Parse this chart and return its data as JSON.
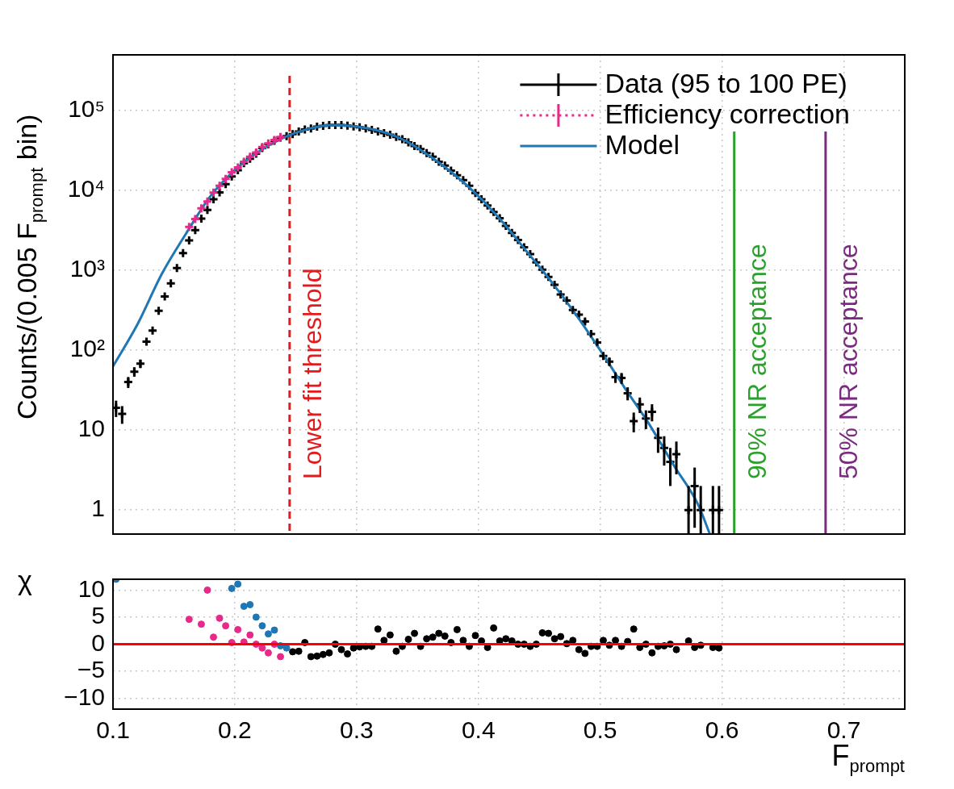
{
  "chart_data": [
    {
      "type": "scatter",
      "ylabel": "Counts/(0.005 F$_{prompt}$ bin)",
      "log": true,
      "grid": true,
      "legend": "top right",
      "tick_labels": "y",
      "xlim": [
        0.1,
        0.75
      ],
      "xticks": [
        0.1,
        0.2,
        0.3,
        0.4,
        0.5,
        0.6,
        0.7
      ],
      "ylim": [
        0.5,
        500000
      ],
      "yticks": [
        1,
        10,
        {
          "value": 100,
          "label": "10²"
        },
        {
          "value": 1000,
          "label": "10³"
        },
        {
          "value": 10000,
          "label": "10⁴"
        },
        {
          "value": 100000,
          "label": "10⁵"
        }
      ],
      "x": [
        0.1025,
        0.1075,
        0.1125,
        0.1175,
        0.1225,
        0.1275,
        0.1325,
        0.1375,
        0.1425,
        0.1475,
        0.1525,
        0.1575,
        0.1625,
        0.1675,
        0.1725,
        0.1775,
        0.1825,
        0.1875,
        0.1925,
        0.1975,
        0.2025,
        0.2075,
        0.2125,
        0.2175,
        0.2225,
        0.2275,
        0.2325,
        0.2375,
        0.2425,
        0.2475,
        0.2525,
        0.2575,
        0.2625,
        0.2675,
        0.2725,
        0.2775,
        0.2825,
        0.2875,
        0.2925,
        0.2975,
        0.3025,
        0.3075,
        0.3125,
        0.3175,
        0.3225,
        0.3275,
        0.3325,
        0.3375,
        0.3425,
        0.3475,
        0.3525,
        0.3575,
        0.3625,
        0.3675,
        0.3725,
        0.3775,
        0.3825,
        0.3875,
        0.3925,
        0.3975,
        0.4025,
        0.4075,
        0.4125,
        0.4175,
        0.4225,
        0.4275,
        0.4325,
        0.4375,
        0.4425,
        0.4475,
        0.4525,
        0.4575,
        0.4625,
        0.4675,
        0.4725,
        0.4775,
        0.4825,
        0.4875,
        0.4925,
        0.4975,
        0.5025,
        0.5075,
        0.5125,
        0.5175,
        0.5225,
        0.5275,
        0.5325,
        0.5375,
        0.5425,
        0.5475,
        0.5525,
        0.5575,
        0.5625,
        0.5675,
        0.5725,
        0.5775,
        0.5825,
        0.5875,
        0.5925,
        0.5975
      ],
      "series": [
        {
          "name": "Data (95 to 100 PE)",
          "color": "#000000",
          "marker": "cross",
          "values": [
            19,
            16,
            40,
            54,
            68,
            128,
            177,
            312,
            472,
            690,
            1070,
            1650,
            2380,
            3200,
            4450,
            5700,
            7800,
            9500,
            12000,
            15000,
            18000,
            22000,
            25000,
            29000,
            34000,
            38000,
            42000,
            46000,
            48000,
            51000,
            55000,
            58000,
            60000,
            63000,
            64500,
            66000,
            66000,
            66000,
            65000,
            63500,
            62000,
            60000,
            57500,
            55000,
            52500,
            50000,
            47000,
            44000,
            40000,
            36000,
            33000,
            29500,
            26500,
            23000,
            20500,
            17800,
            15500,
            13500,
            11500,
            9300,
            7800,
            6500,
            5400,
            4500,
            3600,
            2950,
            2400,
            1950,
            1600,
            1260,
            1020,
            830,
            660,
            500,
            420,
            320,
            280,
            230,
            160,
            125,
            85,
            72,
            46,
            45,
            29,
            13,
            21,
            14,
            17,
            8,
            6,
            4,
            5,
            null,
            1,
            2,
            1,
            null,
            1,
            1
          ],
          "errors": [
            4.4,
            4,
            6.3,
            7.3,
            8.2,
            null,
            null,
            null,
            null,
            null,
            null,
            null,
            null,
            null,
            null,
            null,
            null,
            null,
            null,
            null,
            null,
            null,
            null,
            null,
            null,
            null,
            null,
            null,
            null,
            null,
            null,
            null,
            null,
            null,
            null,
            null,
            null,
            null,
            null,
            null,
            null,
            null,
            null,
            null,
            null,
            null,
            null,
            null,
            null,
            null,
            null,
            null,
            null,
            null,
            null,
            null,
            null,
            null,
            null,
            null,
            null,
            null,
            null,
            null,
            null,
            null,
            null,
            null,
            null,
            null,
            null,
            null,
            26,
            22,
            20,
            18,
            17,
            15,
            13,
            11,
            9,
            8.5,
            7,
            7,
            5.4,
            3.6,
            4.6,
            3.7,
            4.1,
            2.8,
            2.4,
            2,
            2.2,
            null,
            [
              0.5,
              2
            ],
            [
              0.6,
              3.4
            ],
            [
              0.5,
              2
            ],
            null,
            [
              0.5,
              2
            ],
            [
              0.5,
              2
            ]
          ]
        },
        {
          "name": "Efficiency correction",
          "color": "#e7298a",
          "marker": "cross",
          "line_style": "dotted",
          "x": [
            0.1625,
            0.1675,
            0.1725,
            0.1775,
            0.1825,
            0.1875,
            0.1925,
            0.1975,
            0.2025,
            0.2075,
            0.2125,
            0.2175,
            0.2225,
            0.2275,
            0.2325,
            0.2375
          ],
          "values": [
            3500,
            4400,
            6000,
            7300,
            9400,
            11500,
            14000,
            17000,
            19500,
            23000,
            26500,
            30000,
            35000,
            39000,
            43000,
            47000
          ]
        },
        {
          "name": "Model",
          "type": "line",
          "color": "#1f77b4",
          "marker": "none",
          "line_style": "solid",
          "x": [
            0.1,
            0.12,
            0.14,
            0.16,
            0.18,
            0.2,
            0.22,
            0.24,
            0.26,
            0.28,
            0.3,
            0.32,
            0.34,
            0.36,
            0.38,
            0.4,
            0.42,
            0.44,
            0.46,
            0.48,
            0.5,
            0.52,
            0.54,
            0.56,
            0.58,
            0.59
          ],
          "values": [
            63,
            210,
            900,
            2900,
            8500,
            18000,
            31000,
            46000,
            59000,
            66000,
            63000,
            55000,
            42000,
            27000,
            16000,
            8500,
            4000,
            1700,
            720,
            280,
            100,
            34,
            12,
            3.7,
            1.2,
            0.5
          ]
        }
      ],
      "ref_lines": [
        {
          "axis": "x",
          "value": 0.245,
          "label": "Lower fit threshold",
          "color": "#e41a1c",
          "line_style": "dashed"
        },
        {
          "axis": "x",
          "value": 0.61,
          "label": "90% NR acceptance",
          "color": "#2ca02c",
          "line_style": "solid"
        },
        {
          "axis": "x",
          "value": 0.685,
          "label": "50% NR acceptance",
          "color": "#7b2a80",
          "line_style": "solid"
        }
      ]
    },
    {
      "type": "scatter",
      "xlabel": "F$_{prompt}$",
      "ylabel": "χ",
      "grid": true,
      "marker": "circle",
      "xlim": [
        0.1,
        0.75
      ],
      "xticks": [
        0.1,
        0.2,
        0.3,
        0.4,
        0.5,
        0.6,
        0.7
      ],
      "ylim": [
        -12,
        12
      ],
      "yticks": [
        {
          "value": -10,
          "label": "−10"
        },
        {
          "value": -5,
          "label": "−5"
        },
        0,
        5,
        10
      ],
      "series": [
        {
          "color": "#1f77b4",
          "x": [
            0.1025,
            0.1975,
            0.2025,
            0.2075,
            0.2125,
            0.2175,
            0.2225,
            0.2275,
            0.2325,
            0.2375,
            0.2425
          ],
          "values": [
            12,
            10.3,
            11.1,
            7.0,
            7.3,
            5.0,
            3.4,
            1.9,
            2.6,
            -0.3,
            -0.7
          ]
        },
        {
          "color": "#e7298a",
          "x": [
            0.1625,
            0.1725,
            0.1775,
            0.1825,
            0.1875,
            0.1925,
            0.1975,
            0.2025,
            0.2075,
            0.2125,
            0.2175,
            0.2225,
            0.2275,
            0.2325,
            0.2375
          ],
          "values": [
            4.6,
            3.7,
            10.0,
            1.3,
            4.8,
            3.4,
            0.3,
            2.7,
            0.4,
            1.7,
            0,
            -0.7,
            -1.6,
            0,
            -2.3
          ]
        },
        {
          "color": "#000000",
          "x": [
            0.2475,
            0.2525,
            0.2575,
            0.2625,
            0.2675,
            0.2725,
            0.2775,
            0.2825,
            0.2875,
            0.2925,
            0.2975,
            0.3025,
            0.3075,
            0.3125,
            0.3175,
            0.3225,
            0.3275,
            0.3325,
            0.3375,
            0.3425,
            0.3475,
            0.3525,
            0.3575,
            0.3625,
            0.3675,
            0.3725,
            0.3775,
            0.3825,
            0.3875,
            0.3925,
            0.3975,
            0.4025,
            0.4075,
            0.4125,
            0.4175,
            0.4225,
            0.4275,
            0.4325,
            0.4375,
            0.4425,
            0.4475,
            0.4525,
            0.4575,
            0.4625,
            0.4675,
            0.4725,
            0.4775,
            0.4825,
            0.4875,
            0.4925,
            0.4975,
            0.5025,
            0.5075,
            0.5125,
            0.5175,
            0.5225,
            0.5275,
            0.5325,
            0.5375,
            0.5425,
            0.5475,
            0.5525,
            0.5575,
            0.5625,
            0.5725,
            0.5775,
            0.5825,
            0.5925,
            0.5975
          ],
          "values": [
            -1.4,
            -1.3,
            0.3,
            -2.3,
            -2.2,
            -1.9,
            -1.6,
            0,
            -1.0,
            -1.8,
            -0.7,
            -0.5,
            -0.4,
            -0.4,
            2.8,
            0.7,
            1.7,
            -1.3,
            -0.4,
            0.9,
            2.0,
            -0.4,
            1.0,
            1.3,
            2.0,
            1.5,
            0.3,
            2.7,
            0.7,
            -0.4,
            1.6,
            0.6,
            -0.6,
            3.0,
            0.6,
            1.0,
            0.6,
            0,
            0,
            -0.4,
            0,
            2.1,
            2.0,
            1.0,
            1.4,
            0.1,
            0.7,
            -1.0,
            -1.7,
            -0.4,
            -0.4,
            0.7,
            -0.2,
            0.7,
            -0.4,
            0.5,
            2.8,
            -0.6,
            0,
            -1.6,
            -0.4,
            -0.3,
            0,
            -1.0,
            0.6,
            -0.6,
            -0.2,
            -0.6,
            -0.7
          ]
        }
      ],
      "ref_lines": [
        {
          "axis": "y",
          "value": 0,
          "color": "#ff0000",
          "line_style": "solid"
        }
      ]
    }
  ]
}
